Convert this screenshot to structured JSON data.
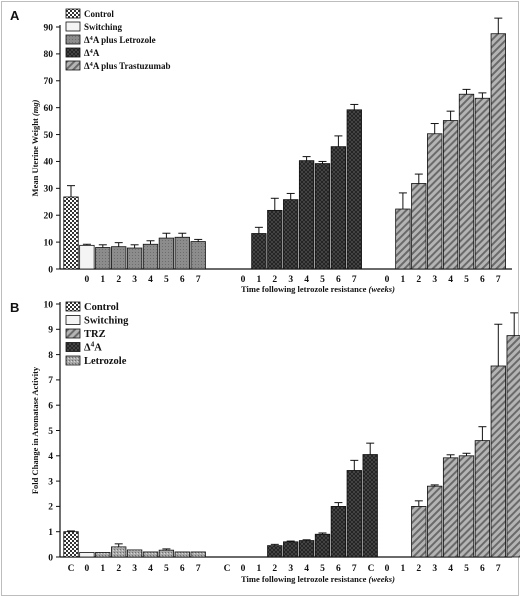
{
  "colors": {
    "control": "#f4f4f4",
    "switching": "#f2f2f2",
    "letrozole_A": "#8c8c8c",
    "d4a": "#3d3d3d",
    "trastuzumab": "#a6a6a6",
    "letrozole_B": "#9a9a9a",
    "axis": "#111111"
  },
  "chart_data": [
    {
      "type": "bar",
      "panel": "A",
      "ylabel": "Mean Uterine Weight (mg)",
      "xlabel": "Time following letrozole resistance (weeks)",
      "ylim": [
        0,
        90
      ],
      "yticks": [
        0,
        10,
        20,
        30,
        40,
        50,
        60,
        70,
        80,
        90
      ],
      "legend": [
        "Control",
        "Switching",
        "Δ4A plus Letrozole",
        "Δ4A",
        "Δ4A plus Trastuzumab"
      ],
      "legend_position": "top-left",
      "groups": [
        {
          "series": "Control",
          "x": [
            ""
          ],
          "values": [
            26.8
          ],
          "errors": [
            4.2
          ]
        },
        {
          "series": "Switching",
          "x": [
            "0"
          ],
          "values": [
            8.8
          ],
          "errors": [
            0.4
          ]
        },
        {
          "series": "Δ4A plus Letrozole",
          "x": [
            "1",
            "2",
            "3",
            "4",
            "5",
            "6",
            "7"
          ],
          "values": [
            8.0,
            8.3,
            7.8,
            9.2,
            11.5,
            11.8,
            10.2
          ],
          "errors": [
            1.0,
            1.5,
            1.2,
            1.3,
            1.8,
            1.5,
            0.8
          ]
        },
        {
          "series": "Δ4A",
          "x": [
            "0",
            "1",
            "2",
            "3",
            "4",
            "5",
            "6",
            "7"
          ],
          "values": [
            null,
            13.2,
            21.8,
            25.8,
            40.3,
            39.2,
            45.5,
            59.2
          ],
          "errors": [
            null,
            2.3,
            4.5,
            2.3,
            1.5,
            0.8,
            4.0,
            2.0
          ]
        },
        {
          "series": "Δ4A plus Trastuzumab",
          "x": [
            "0",
            "1",
            "2",
            "3",
            "4",
            "5",
            "6",
            "7"
          ],
          "values": [
            null,
            22.3,
            31.8,
            50.3,
            55.2,
            65.0,
            63.5,
            87.5
          ],
          "errors": [
            null,
            6.0,
            3.5,
            3.8,
            3.5,
            1.8,
            2.0,
            5.8
          ]
        }
      ]
    },
    {
      "type": "bar",
      "panel": "B",
      "ylabel": "Fold Change in Aromatase Activity",
      "xlabel": "Time following letrozole resistance (weeks)",
      "ylim": [
        0,
        10
      ],
      "yticks": [
        0,
        1,
        2,
        3,
        4,
        5,
        6,
        7,
        8,
        9,
        10
      ],
      "legend": [
        "Control",
        "Switching",
        "TRZ",
        "Δ4A",
        "Letrozole"
      ],
      "legend_position": "top-left",
      "groups": [
        {
          "series": "Control",
          "x": [
            "C"
          ],
          "values": [
            1.0
          ],
          "errors": [
            0.03
          ]
        },
        {
          "series": "Switching",
          "x": [
            "0"
          ],
          "values": [
            0.18
          ],
          "errors": [
            0.0
          ]
        },
        {
          "series": "Letrozole",
          "x": [
            "1",
            "2",
            "3",
            "4",
            "5",
            "6",
            "7"
          ],
          "values": [
            0.18,
            0.4,
            0.28,
            0.2,
            0.27,
            0.2,
            0.2
          ],
          "errors": [
            0.0,
            0.12,
            0.0,
            0.0,
            0.05,
            0.0,
            0.0
          ]
        },
        {
          "series": "Δ4A",
          "x": [
            "C",
            "0",
            "1",
            "2",
            "3",
            "4",
            "5",
            "6",
            "7"
          ],
          "values": [
            null,
            null,
            0.45,
            0.6,
            0.65,
            0.9,
            2.0,
            3.42,
            4.05
          ],
          "errors": [
            null,
            null,
            0.05,
            0.03,
            0.03,
            0.05,
            0.15,
            0.4,
            0.45
          ]
        },
        {
          "series": "TRZ",
          "x": [
            "C",
            "0",
            "1",
            "2",
            "3",
            "4",
            "5",
            "6",
            "7"
          ],
          "values": [
            null,
            null,
            2.0,
            2.8,
            3.92,
            4.0,
            4.6,
            7.55,
            8.75
          ],
          "errors": [
            null,
            null,
            0.22,
            0.05,
            0.12,
            0.1,
            0.55,
            1.65,
            0.9
          ]
        }
      ]
    }
  ]
}
